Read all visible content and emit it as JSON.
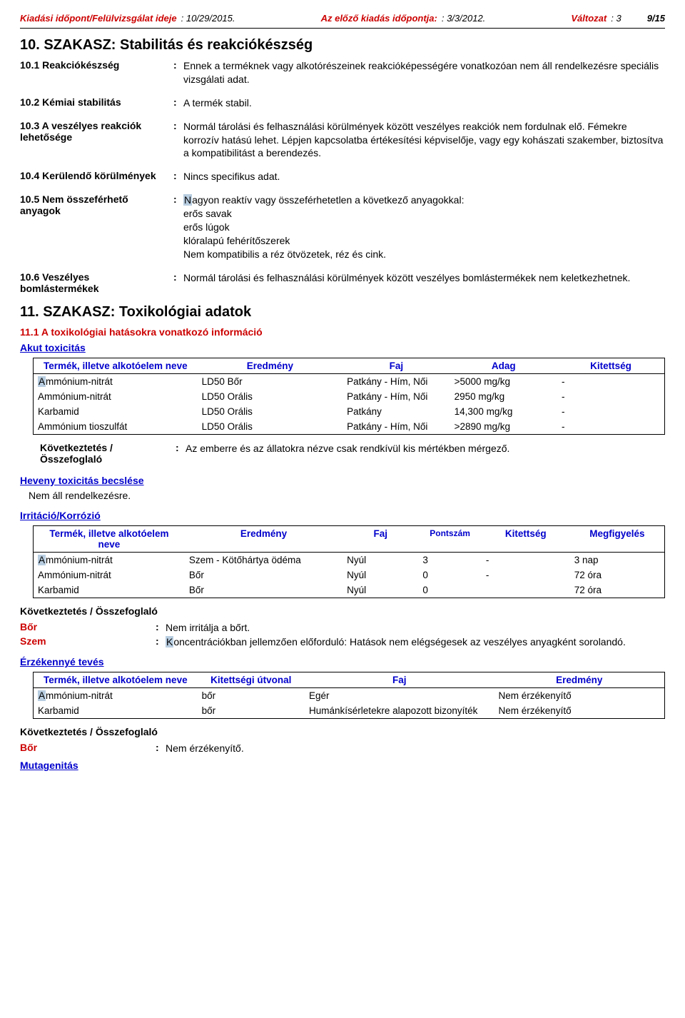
{
  "header": {
    "issue_label": "Kiadási időpont/Felülvizsgálat ideje",
    "issue_date": ": 10/29/2015.",
    "prev_label": "Az előző kiadás időpontja:",
    "prev_date": ": 3/3/2012.",
    "version_label": "Változat",
    "version_value": ": 3",
    "page_num": "9/15"
  },
  "s10": {
    "title": "10. SZAKASZ: Stabilitás és reakciókészség",
    "r1_label": "10.1 Reakciókészség",
    "r1_text": "Ennek a terméknek vagy alkotórészeinek reakcióképességére vonatkozóan nem áll rendelkezésre speciális vizsgálati adat.",
    "r2_label": "10.2 Kémiai stabilitás",
    "r2_text": "A termék stabil.",
    "r3_label": "10.3 A veszélyes reakciók lehetősége",
    "r3_text": "Normál tárolási és felhasználási körülmények között veszélyes reakciók nem fordulnak elő. Fémekre korrozív hatású lehet. Lépjen kapcsolatba értékesítési képviselője, vagy egy kohászati szakember, biztosítva a kompatibilitást a berendezés.",
    "r4_label": "10.4 Kerülendő körülmények",
    "r4_text": "Nincs specifikus adat.",
    "r5_label": "10.5 Nem összeférhető anyagok",
    "r5_l1": "Nagyon reaktív vagy összeférhetetlen a következő anyagokkal:",
    "r5_l2": "erős savak",
    "r5_l3": "erős lúgok",
    "r5_l4": "klóralapú fehérítőszerek",
    "r5_l5": "Nem kompatibilis a réz ötvözetek, réz és cink.",
    "r6_label": "10.6 Veszélyes bomlástermékek",
    "r6_text": "Normál tárolási és felhasználási körülmények között veszélyes bomlástermékek nem keletkezhetnek."
  },
  "s11": {
    "title": "11. SZAKASZ: Toxikológiai adatok",
    "h1": "11.1 A toxikológiai hatásokra vonatkozó információ",
    "akut": "Akut toxicitás",
    "t1_headers": {
      "c1": "Termék, illetve alkotóelem neve",
      "c2": "Eredmény",
      "c3": "Faj",
      "c4": "Adag",
      "c5": "Kitettség"
    },
    "t1_rows": [
      {
        "name": "Ammónium-nitrát",
        "res": "LD50 Bőr",
        "faj": "Patkány - Hím, Női",
        "adag": ">5000 mg/kg",
        "kit": "-",
        "marker": true
      },
      {
        "name": "Ammónium-nitrát",
        "res": "LD50 Orális",
        "faj": "Patkány - Hím, Női",
        "adag": "2950 mg/kg",
        "kit": "-",
        "marker": false
      },
      {
        "name": "Karbamid",
        "res": "LD50 Orális",
        "faj": "Patkány",
        "adag": "14,300 mg/kg",
        "kit": "-",
        "marker": false
      },
      {
        "name": "Ammónium tioszulfát",
        "res": "LD50 Orális",
        "faj": "Patkány - Hím, Női",
        "adag": ">2890 mg/kg",
        "kit": "-",
        "marker": false
      }
    ],
    "concl_label": "Következtetés / Összefoglaló",
    "concl_t1": "Az emberre és az állatokra nézve csak rendkívül kis mértékben mérgező.",
    "heveny": "Heveny toxicitás becslése",
    "heveny_text": "Nem áll rendelkezésre.",
    "irrit": "Irritáció/Korrózió",
    "t2_headers": {
      "c1": "Termék, illetve alkotóelem neve",
      "c2": "Eredmény",
      "c3": "Faj",
      "c4": "Pontszám",
      "c5": "Kitettség",
      "c6": "Megfigyelés"
    },
    "t2_rows": [
      {
        "name": "Ammónium-nitrát",
        "res": "Szem - Kötőhártya ödéma",
        "faj": "Nyúl",
        "pont": "3",
        "kit": "-",
        "meg": "3 nap",
        "marker": true
      },
      {
        "name": "Ammónium-nitrát",
        "res": "Bőr",
        "faj": "Nyúl",
        "pont": "0",
        "kit": "-",
        "meg": "72 óra",
        "marker": false
      },
      {
        "name": "Karbamid",
        "res": "Bőr",
        "faj": "Nyúl",
        "pont": "0",
        "kit": "",
        "meg": "72 óra",
        "marker": false
      }
    ],
    "bor_label": "Bőr",
    "bor_text": "Nem irritálja a bőrt.",
    "szem_label": "Szem",
    "szem_text": "Koncentrációkban jellemzően előforduló: Hatások nem elégségesek az veszélyes anyagként sorolandó.",
    "erzek": "Érzékennyé tevés",
    "t3_headers": {
      "c1": "Termék, illetve alkotóelem neve",
      "c2": "Kitettségi útvonal",
      "c3": "Faj",
      "c4": "Eredmény"
    },
    "t3_rows": [
      {
        "name": "Ammónium-nitrát",
        "ut": "bőr",
        "faj": "Egér",
        "ered": "Nem érzékenyítő",
        "marker": true
      },
      {
        "name": "Karbamid",
        "ut": "bőr",
        "faj": "Humánkísérletekre alapozott bizonyíték",
        "ered": "Nem érzékenyítő",
        "marker": false
      }
    ],
    "bor2_text": "Nem érzékenyítő.",
    "muta": "Mutagenitás"
  }
}
